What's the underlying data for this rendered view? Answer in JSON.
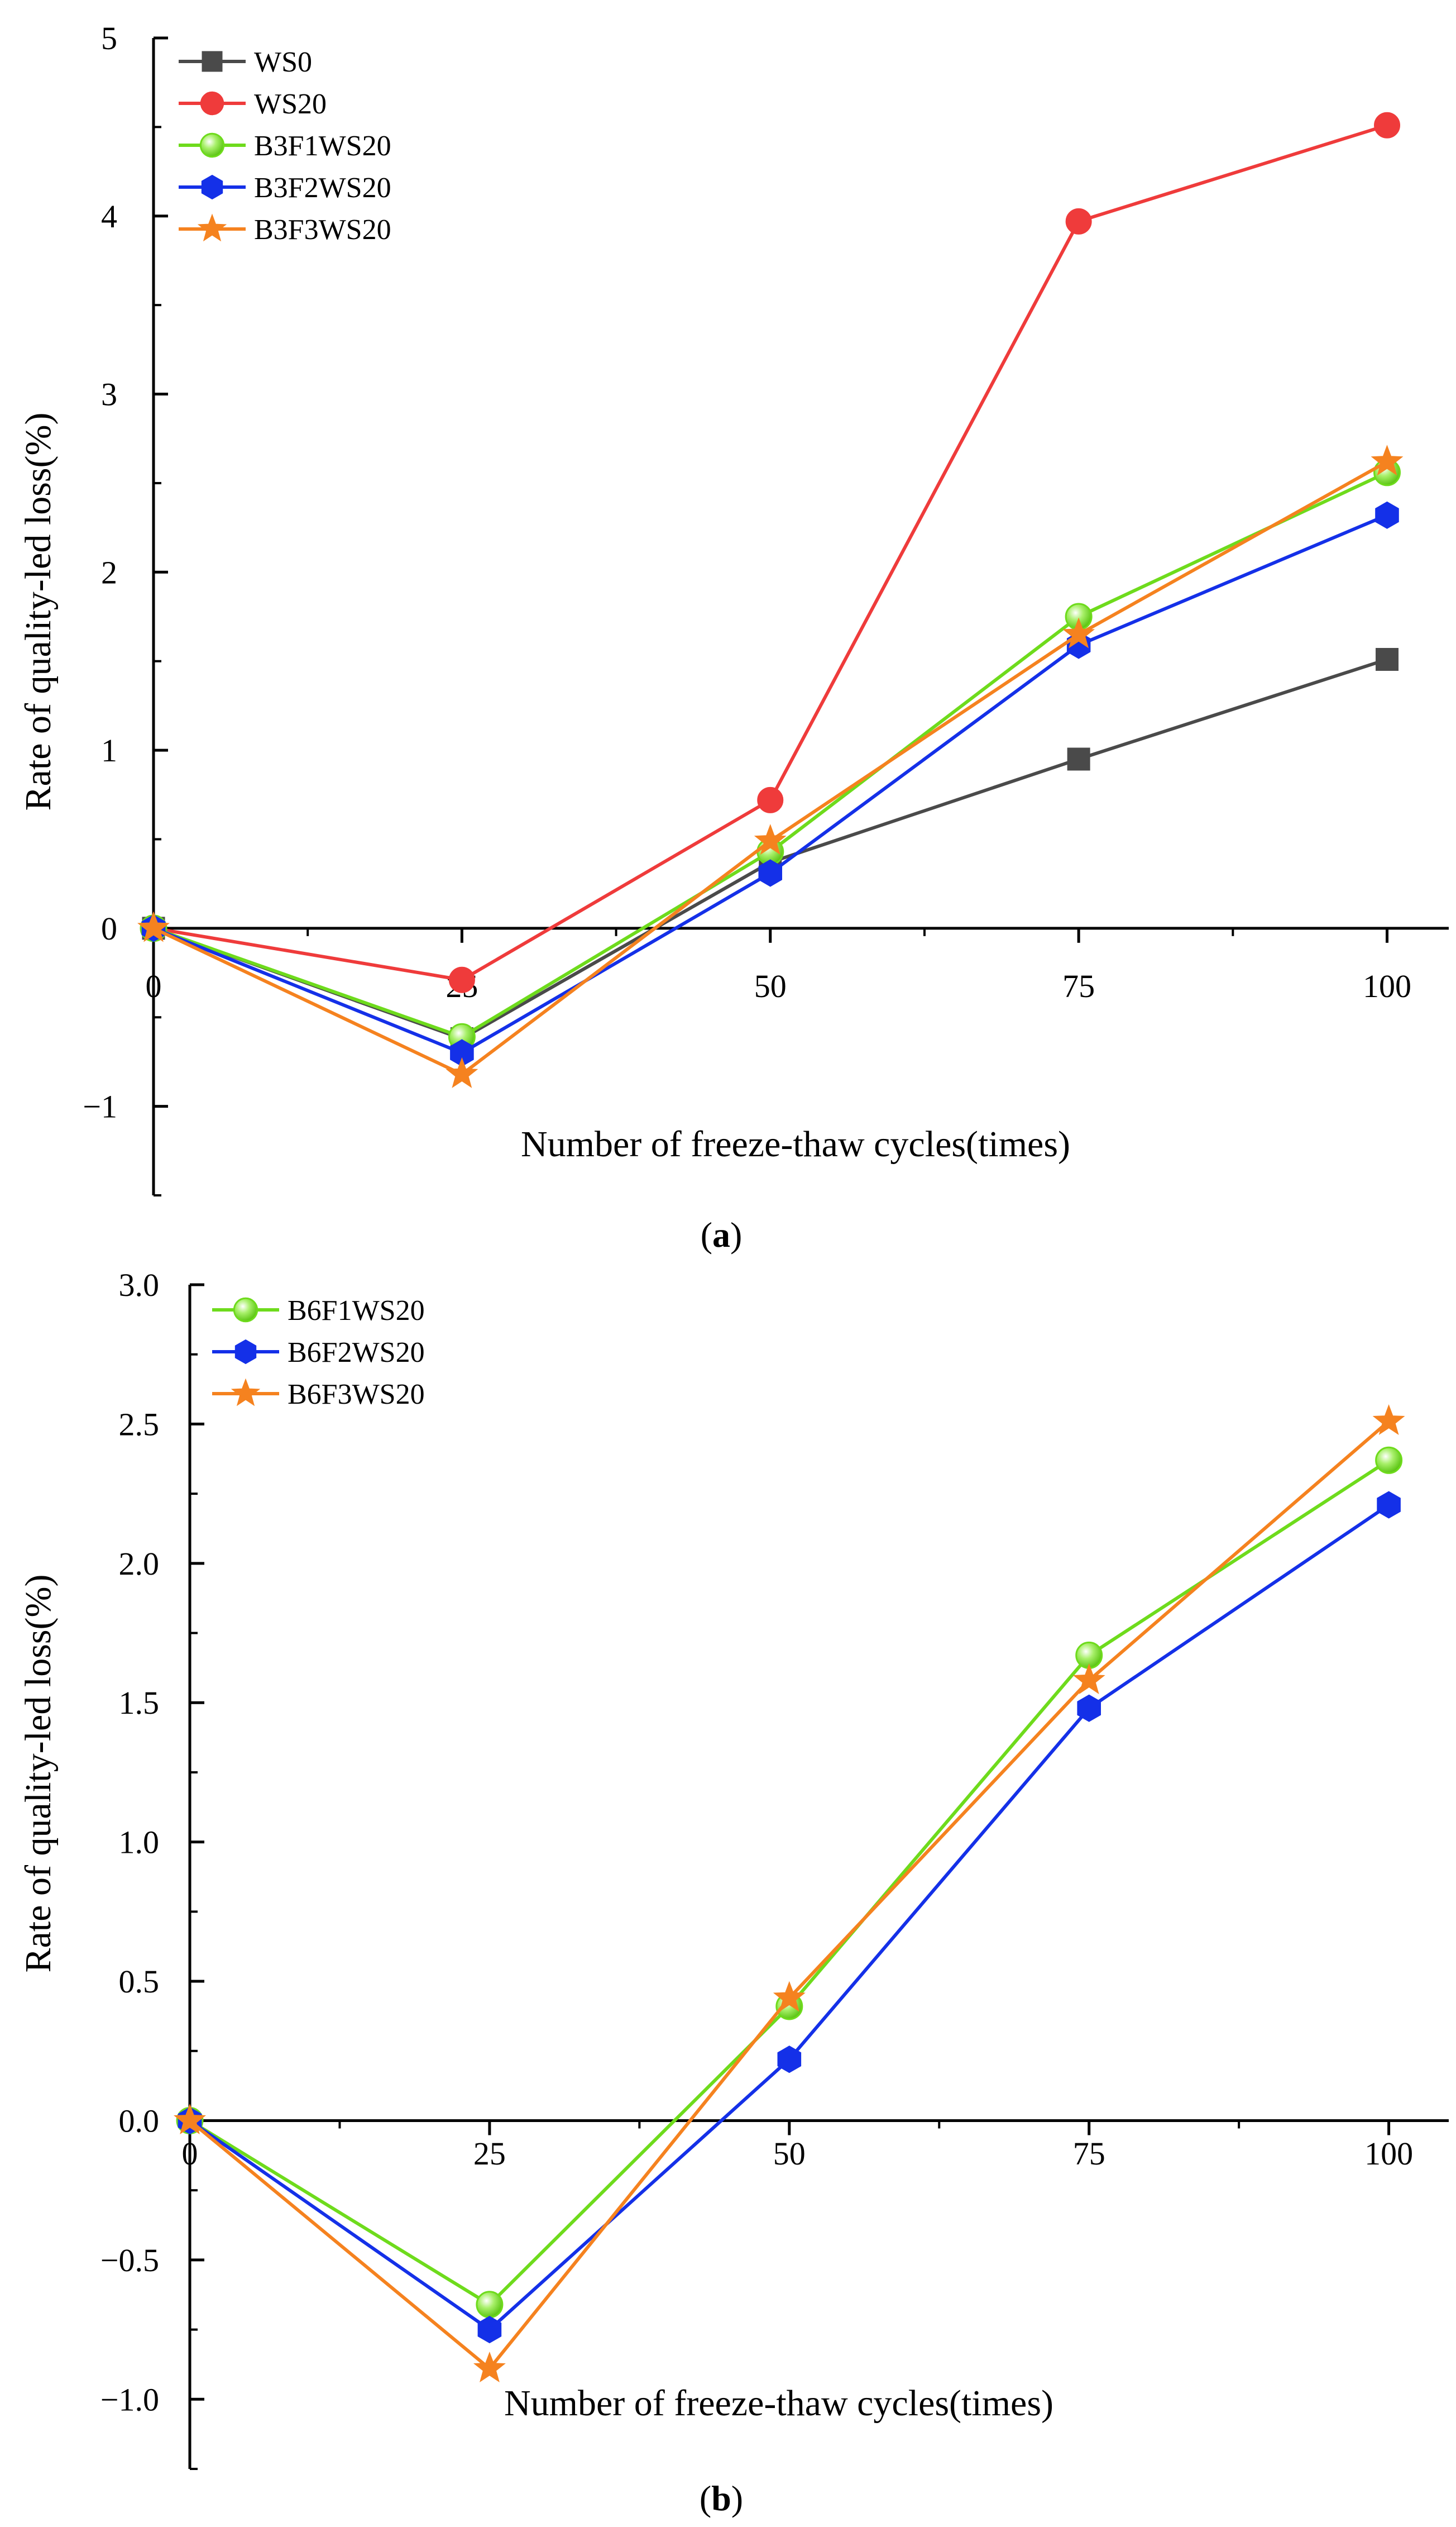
{
  "chart_data": [
    {
      "type": "line",
      "panel": "a",
      "caption_letter": "a",
      "title": "",
      "xlabel": "Number of freeze-thaw cycles(times)",
      "ylabel": "Rate of quality-led loss(%)",
      "xlim": [
        0,
        105
      ],
      "ylim": [
        -1.5,
        5
      ],
      "xticks": [
        0,
        25,
        50,
        75,
        100
      ],
      "yticks": [
        -1,
        0,
        1,
        2,
        3,
        4,
        5
      ],
      "ytick_labels": [
        "−1",
        "0",
        "1",
        "2",
        "3",
        "4",
        "5"
      ],
      "xtick_labels": [
        "0",
        "25",
        "50",
        "75",
        "100"
      ],
      "x": [
        0,
        25,
        50,
        75,
        100
      ],
      "legend_position": "top-left",
      "series": [
        {
          "name": "WS0",
          "color": "#4a4a4a",
          "marker": "square",
          "values": [
            0,
            -0.62,
            0.37,
            0.95,
            1.51
          ]
        },
        {
          "name": "WS20",
          "color": "#ef3b3b",
          "marker": "circle",
          "values": [
            0,
            -0.29,
            0.72,
            3.97,
            4.51
          ]
        },
        {
          "name": "B3F1WS20",
          "color": "#6edb1c",
          "marker": "sphere",
          "values": [
            0,
            -0.61,
            0.43,
            1.75,
            2.56
          ]
        },
        {
          "name": "B3F2WS20",
          "color": "#1430e8",
          "marker": "hexagon",
          "values": [
            0,
            -0.7,
            0.31,
            1.59,
            2.32
          ]
        },
        {
          "name": "B3F3WS20",
          "color": "#f5821f",
          "marker": "star",
          "values": [
            0,
            -0.82,
            0.49,
            1.65,
            2.62
          ]
        }
      ]
    },
    {
      "type": "line",
      "panel": "b",
      "caption_letter": "b",
      "title": "",
      "xlabel": "Number of freeze-thaw cycles(times)",
      "ylabel": "Rate of quality-led loss(%)",
      "xlim": [
        0,
        105
      ],
      "ylim": [
        -1.25,
        3.0
      ],
      "xticks": [
        0,
        25,
        50,
        75,
        100
      ],
      "yticks": [
        -1.0,
        -0.5,
        0.0,
        0.5,
        1.0,
        1.5,
        2.0,
        2.5,
        3.0
      ],
      "ytick_labels": [
        "−1.0",
        "−0.5",
        "0.0",
        "0.5",
        "1.0",
        "1.5",
        "2.0",
        "2.5",
        "3.0"
      ],
      "xtick_labels": [
        "0",
        "25",
        "50",
        "75",
        "100"
      ],
      "x": [
        0,
        25,
        50,
        75,
        100
      ],
      "legend_position": "top-left",
      "series": [
        {
          "name": "B6F1WS20",
          "color": "#6edb1c",
          "marker": "sphere",
          "values": [
            0,
            -0.66,
            0.41,
            1.67,
            2.37
          ]
        },
        {
          "name": "B6F2WS20",
          "color": "#1430e8",
          "marker": "hexagon",
          "values": [
            0,
            -0.75,
            0.22,
            1.48,
            2.21
          ]
        },
        {
          "name": "B6F3WS20",
          "color": "#f5821f",
          "marker": "star",
          "values": [
            0,
            -0.89,
            0.44,
            1.58,
            2.51
          ]
        }
      ]
    }
  ]
}
